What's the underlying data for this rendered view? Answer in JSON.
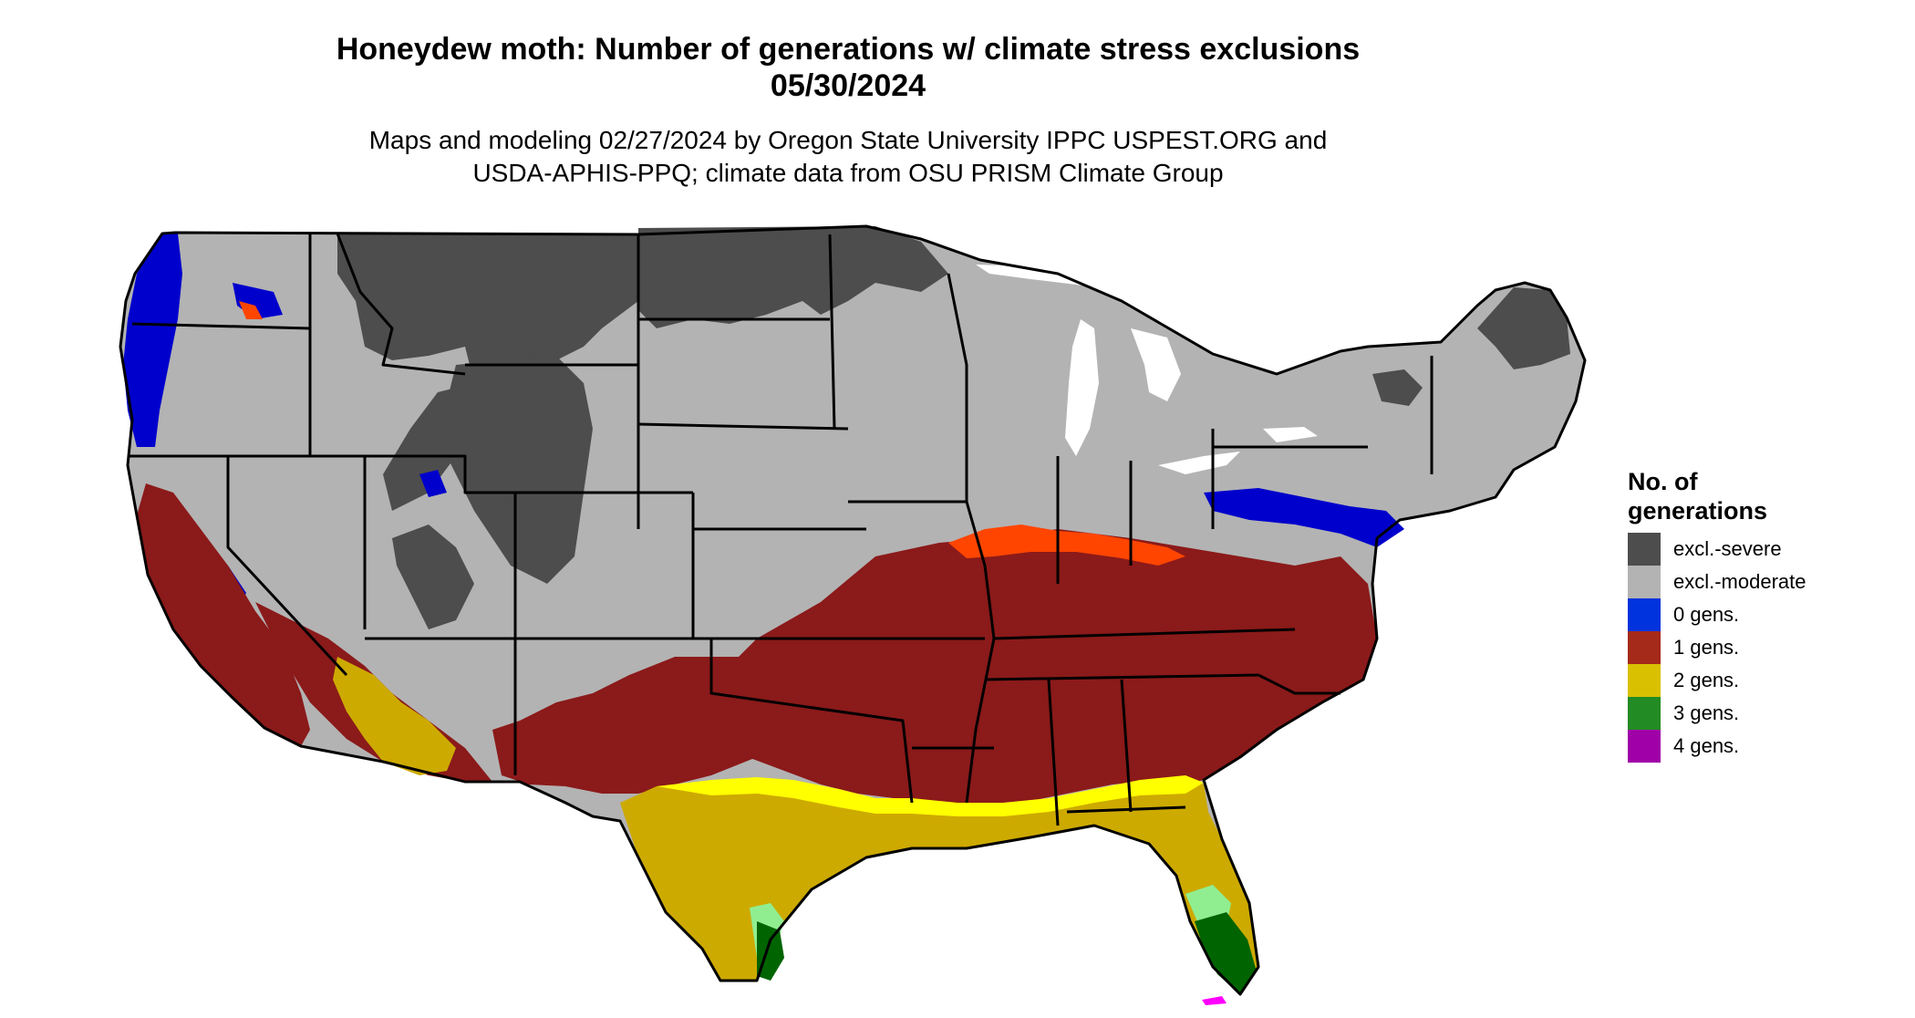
{
  "title": {
    "line1": "Honeydew moth: Number of generations w/ climate stress exclusions",
    "line2": "05/30/2024"
  },
  "subtitle": {
    "line1": "Maps and modeling 02/27/2024 by Oregon State University IPPC USPEST.ORG and",
    "line2": "USDA-APHIS-PPQ; climate data from OSU PRISM Climate Group"
  },
  "legend": {
    "title_line1": "No. of",
    "title_line2": "generations",
    "items": [
      {
        "label": "excl.-severe",
        "color": "#4d4d4d"
      },
      {
        "label": "excl.-moderate",
        "color": "#b3b3b3"
      },
      {
        "label": "0 gens.",
        "color": "#0033dd"
      },
      {
        "label": "1 gens.",
        "color": "#a52a1a"
      },
      {
        "label": "2 gens.",
        "color": "#d9c000"
      },
      {
        "label": "3 gens.",
        "color": "#238b23"
      },
      {
        "label": "4 gens.",
        "color": "#a000a8"
      }
    ]
  },
  "map_colors": {
    "severe": "#4d4d4d",
    "moderate": "#b3b3b3",
    "zero": "#0000cc",
    "one": "#8b1a1a",
    "one_edge": "#ff4500",
    "two": "#cdaa00",
    "two_edge": "#ffff00",
    "three": "#006400",
    "three_edge": "#90ee90",
    "four": "#ff00ff"
  }
}
